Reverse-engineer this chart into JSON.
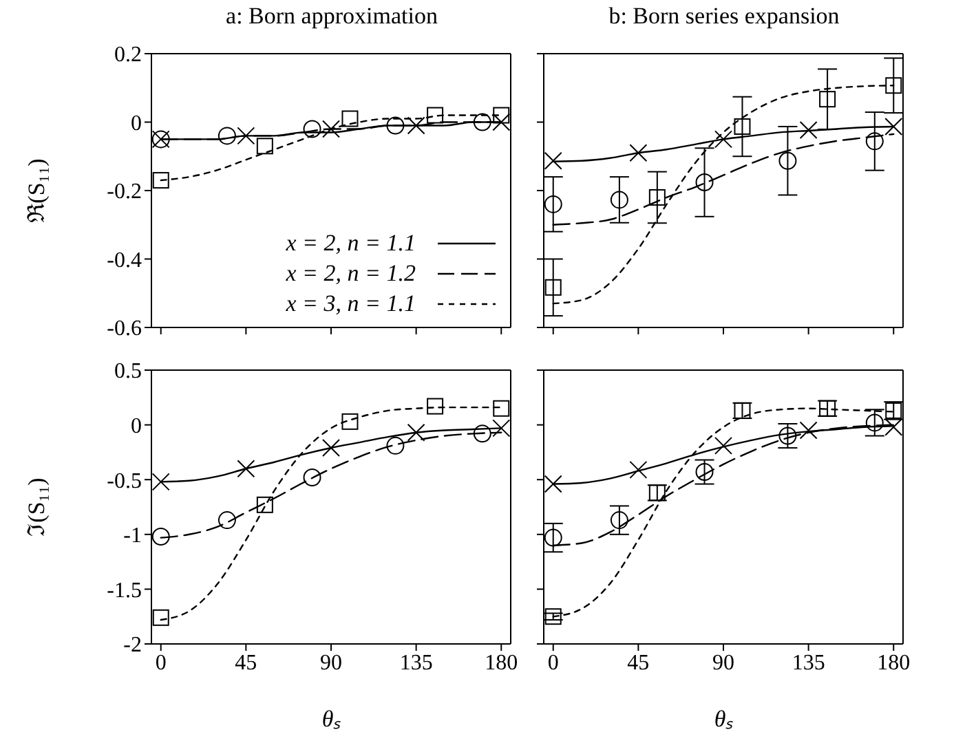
{
  "chart_data": [
    {
      "type": "line",
      "title": "a: Born approximation",
      "ylabel": "ℜ(S₁₁)",
      "xlim": [
        -5,
        185
      ],
      "xticks": [
        0,
        45,
        90,
        135,
        180
      ],
      "ylim": [
        -0.6,
        0.2
      ],
      "yticks": [
        0.2,
        0,
        -0.2,
        -0.4,
        -0.6
      ],
      "tick_labels": "y",
      "legend": "bottom",
      "series": [
        {
          "name": "x = 2, n = 1.1",
          "color": "#000000",
          "line_style": "solid",
          "x": [
            0,
            15,
            30,
            45,
            60,
            75,
            90,
            105,
            120,
            135,
            150,
            165,
            180
          ],
          "values": [
            -0.05,
            -0.05,
            -0.05,
            -0.04,
            -0.04,
            -0.03,
            -0.03,
            -0.02,
            -0.01,
            -0.01,
            -0.01,
            0,
            0
          ]
        },
        {
          "name": "x = 2, n = 1.2",
          "color": "#000000",
          "line_style": "dashed",
          "x": [
            0,
            15,
            30,
            45,
            60,
            75,
            90,
            105,
            120,
            135,
            150,
            165,
            180
          ],
          "values": [
            -0.05,
            -0.05,
            -0.05,
            -0.04,
            -0.04,
            -0.03,
            -0.02,
            -0.02,
            -0.01,
            -0.01,
            0,
            0,
            0
          ]
        },
        {
          "name": "x = 3, n = 1.1",
          "color": "#000000",
          "line_style": "dotted",
          "x": [
            0,
            15,
            30,
            45,
            60,
            75,
            90,
            105,
            120,
            135,
            150,
            165,
            180
          ],
          "values": [
            -0.17,
            -0.16,
            -0.14,
            -0.11,
            -0.08,
            -0.05,
            -0.02,
            0,
            0.01,
            0.01,
            0.02,
            0.02,
            0.02
          ]
        },
        {
          "type": "scatter",
          "color": "#000000",
          "marker": "circle",
          "x": [
            0,
            35,
            80,
            124,
            170
          ],
          "values": [
            -0.05,
            -0.04,
            -0.02,
            -0.01,
            0
          ]
        },
        {
          "type": "scatter",
          "color": "#000000",
          "marker": "cross",
          "x": [
            0,
            45,
            90,
            135,
            180
          ],
          "values": [
            -0.05,
            -0.04,
            -0.02,
            -0.01,
            0
          ]
        },
        {
          "type": "scatter",
          "color": "#000000",
          "marker": "square",
          "x": [
            0,
            55,
            100,
            145,
            180
          ],
          "values": [
            -0.17,
            -0.07,
            0.01,
            0.02,
            0.02
          ]
        }
      ]
    },
    {
      "type": "line",
      "title": "b: Born series expansion",
      "xlim": [
        -5,
        185
      ],
      "xticks": [
        0,
        45,
        90,
        135,
        180
      ],
      "ylim": [
        -0.6,
        0.2
      ],
      "yticks": [
        0.2,
        0,
        -0.2,
        -0.4,
        -0.6
      ],
      "tick_labels": false,
      "series": [
        {
          "color": "#000000",
          "line_style": "solid",
          "x": [
            0,
            15,
            30,
            45,
            60,
            75,
            90,
            105,
            120,
            135,
            150,
            165,
            180
          ],
          "values": [
            -0.115,
            -0.113,
            -0.105,
            -0.09,
            -0.08,
            -0.065,
            -0.05,
            -0.04,
            -0.03,
            -0.025,
            -0.02,
            -0.015,
            -0.013
          ]
        },
        {
          "color": "#000000",
          "line_style": "dashed",
          "x": [
            0,
            15,
            30,
            45,
            60,
            75,
            90,
            105,
            120,
            135,
            150,
            165,
            180
          ],
          "values": [
            -0.3,
            -0.295,
            -0.285,
            -0.255,
            -0.22,
            -0.19,
            -0.155,
            -0.12,
            -0.09,
            -0.07,
            -0.055,
            -0.045,
            -0.035
          ]
        },
        {
          "color": "#000000",
          "line_style": "dotted",
          "x": [
            0,
            15,
            30,
            45,
            60,
            75,
            90,
            105,
            120,
            135,
            150,
            165,
            180
          ],
          "values": [
            -0.53,
            -0.52,
            -0.47,
            -0.37,
            -0.24,
            -0.12,
            -0.03,
            0.03,
            0.07,
            0.09,
            0.1,
            0.105,
            0.107
          ]
        },
        {
          "type": "scatter",
          "color": "#000000",
          "marker": "cross",
          "x": [
            0,
            45,
            90,
            135,
            180
          ],
          "values": [
            -0.113,
            -0.09,
            -0.05,
            -0.023,
            -0.013
          ]
        },
        {
          "type": "scatter",
          "color": "#000000",
          "marker": "circle",
          "x": [
            0,
            35,
            80,
            124,
            170
          ],
          "values": [
            -0.24,
            -0.227,
            -0.176,
            -0.113,
            -0.056
          ],
          "errors": [
            0.08,
            0.067,
            0.1,
            0.1,
            0.085
          ]
        },
        {
          "type": "scatter",
          "color": "#000000",
          "marker": "square",
          "x": [
            0,
            55,
            100,
            145,
            180
          ],
          "values": [
            -0.483,
            -0.22,
            -0.013,
            0.067,
            0.107
          ],
          "errors": [
            0.083,
            0.075,
            0.087,
            0.088,
            0.08
          ]
        }
      ]
    },
    {
      "type": "line",
      "xlabel": "θₛ",
      "ylabel": "ℑ(S₁₁)",
      "xlim": [
        -5,
        185
      ],
      "xticks": [
        0,
        45,
        90,
        135,
        180
      ],
      "ylim": [
        -2,
        0.5
      ],
      "yticks": [
        0.5,
        0,
        -0.5,
        -1,
        -1.5,
        -2
      ],
      "series": [
        {
          "color": "#000000",
          "line_style": "solid",
          "x": [
            0,
            15,
            30,
            45,
            60,
            75,
            90,
            105,
            120,
            135,
            150,
            165,
            180
          ],
          "values": [
            -0.52,
            -0.51,
            -0.47,
            -0.4,
            -0.34,
            -0.27,
            -0.21,
            -0.16,
            -0.11,
            -0.07,
            -0.05,
            -0.04,
            -0.03
          ]
        },
        {
          "color": "#000000",
          "line_style": "dashed",
          "x": [
            0,
            15,
            30,
            45,
            60,
            75,
            90,
            105,
            120,
            135,
            150,
            165,
            180
          ],
          "values": [
            -1.03,
            -1,
            -0.93,
            -0.8,
            -0.67,
            -0.53,
            -0.4,
            -0.29,
            -0.2,
            -0.14,
            -0.1,
            -0.08,
            -0.07
          ]
        },
        {
          "color": "#000000",
          "line_style": "dotted",
          "x": [
            0,
            15,
            30,
            45,
            60,
            75,
            90,
            105,
            120,
            135,
            150,
            165,
            180
          ],
          "values": [
            -1.78,
            -1.7,
            -1.45,
            -1.05,
            -0.6,
            -0.25,
            -0.03,
            0.07,
            0.13,
            0.15,
            0.16,
            0.16,
            0.16
          ]
        },
        {
          "type": "scatter",
          "color": "#000000",
          "marker": "cross",
          "x": [
            0,
            45,
            90,
            135,
            180
          ],
          "values": [
            -0.52,
            -0.4,
            -0.21,
            -0.07,
            -0.03
          ]
        },
        {
          "type": "scatter",
          "color": "#000000",
          "marker": "circle",
          "x": [
            0,
            35,
            80,
            124,
            170
          ],
          "values": [
            -1.02,
            -0.87,
            -0.48,
            -0.19,
            -0.08
          ]
        },
        {
          "type": "scatter",
          "color": "#000000",
          "marker": "square",
          "x": [
            0,
            55,
            100,
            145,
            180
          ],
          "values": [
            -1.76,
            -0.73,
            0.03,
            0.17,
            0.15
          ]
        }
      ]
    },
    {
      "type": "line",
      "xlabel": "θₛ",
      "xlim": [
        -5,
        185
      ],
      "xticks": [
        0,
        45,
        90,
        135,
        180
      ],
      "ylim": [
        -2,
        0.5
      ],
      "yticks": [
        0.5,
        0,
        -0.5,
        -1,
        -1.5,
        -2
      ],
      "tick_labels": "x",
      "series": [
        {
          "color": "#000000",
          "line_style": "solid",
          "x": [
            0,
            15,
            30,
            45,
            60,
            75,
            90,
            105,
            120,
            135,
            150,
            165,
            180
          ],
          "values": [
            -0.54,
            -0.53,
            -0.49,
            -0.42,
            -0.35,
            -0.27,
            -0.2,
            -0.14,
            -0.09,
            -0.06,
            -0.04,
            -0.02,
            -0.01
          ]
        },
        {
          "color": "#000000",
          "line_style": "dashed",
          "x": [
            0,
            15,
            30,
            45,
            60,
            75,
            90,
            105,
            120,
            135,
            150,
            165,
            180
          ],
          "values": [
            -1.1,
            -1.08,
            -0.98,
            -0.82,
            -0.65,
            -0.5,
            -0.36,
            -0.24,
            -0.14,
            -0.07,
            -0.03,
            -0.01,
            0
          ]
        },
        {
          "color": "#000000",
          "line_style": "dotted",
          "x": [
            0,
            15,
            30,
            45,
            60,
            75,
            90,
            105,
            120,
            135,
            150,
            165,
            180
          ],
          "values": [
            -1.75,
            -1.68,
            -1.45,
            -1.05,
            -0.6,
            -0.25,
            -0.02,
            0.1,
            0.14,
            0.15,
            0.14,
            0.13,
            0.12
          ]
        },
        {
          "type": "scatter",
          "color": "#000000",
          "marker": "cross",
          "x": [
            0,
            45,
            90,
            135,
            180
          ],
          "values": [
            -0.54,
            -0.41,
            -0.19,
            -0.05,
            -0.02
          ]
        },
        {
          "type": "scatter",
          "color": "#000000",
          "marker": "circle",
          "x": [
            0,
            35,
            80,
            124,
            170
          ],
          "values": [
            -1.03,
            -0.87,
            -0.43,
            -0.1,
            0.02
          ],
          "errors": [
            0.13,
            0.13,
            0.11,
            0.11,
            0.12
          ]
        },
        {
          "type": "scatter",
          "color": "#000000",
          "marker": "square",
          "x": [
            0,
            55,
            100,
            145,
            180
          ],
          "values": [
            -1.75,
            -0.62,
            0.13,
            0.15,
            0.13
          ],
          "errors": [
            0.03,
            0.07,
            0.07,
            0.07,
            0.08
          ]
        }
      ]
    }
  ]
}
